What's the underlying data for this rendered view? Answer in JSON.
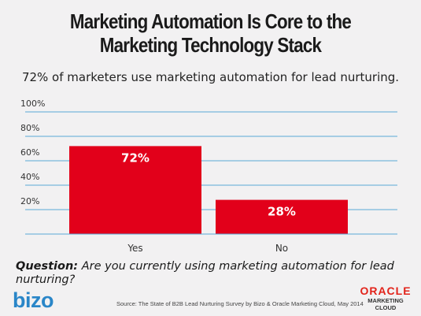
{
  "title": "Marketing Automation Is Core to the Marketing Technology Stack",
  "subtitle": "72% of marketers use marketing automation for lead nurturing.",
  "chart_data": {
    "type": "bar",
    "categories": [
      "Yes",
      "No"
    ],
    "values": [
      72,
      28
    ],
    "data_labels": [
      "72%",
      "28%"
    ],
    "ylim": [
      0,
      100
    ],
    "yticks": [
      "20%",
      "40%",
      "60%",
      "80%",
      "100%"
    ],
    "ytick_values": [
      20,
      40,
      60,
      80,
      100
    ],
    "grid": true,
    "colors": {
      "bar": "#e2001a",
      "grid": "#5aa9d6",
      "label": "#ffffff"
    }
  },
  "question": {
    "label": "Question:",
    "text": "Are you currently using marketing automation for lead nurturing?"
  },
  "footer": {
    "bizo_logo": "bizo",
    "source": "Source: The State of B2B Lead Nurturing Survey by Bizo & Oracle Marketing Cloud, May 2014",
    "oracle_logo": {
      "brand": "ORACLE",
      "line1": "MARKETING",
      "line2": "CLOUD"
    }
  }
}
